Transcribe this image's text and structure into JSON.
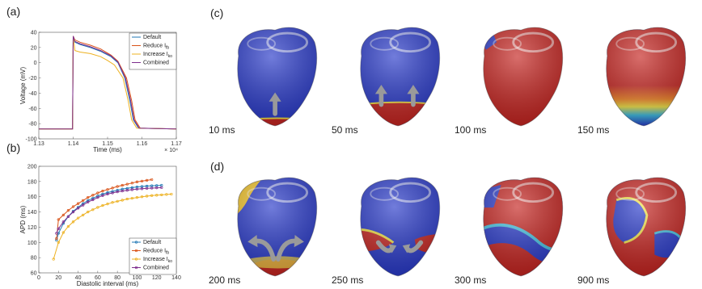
{
  "panels": {
    "a": "(a)",
    "b": "(b)",
    "c": "(c)",
    "d": "(d)"
  },
  "chart_data": [
    {
      "type": "line",
      "xlabel": "Time (ms)",
      "ylabel": "Voltage (mV)",
      "x_multiplier": "× 10⁴",
      "xlim": [
        1.13,
        1.17
      ],
      "ylim": [
        -100,
        40
      ],
      "xticks": [
        "1.13",
        "1.14",
        "1.15",
        "1.16",
        "1.17"
      ],
      "yticks": [
        "-100",
        "-80",
        "-60",
        "-40",
        "-20",
        "0",
        "20",
        "40"
      ],
      "legend_position": "top-right",
      "series": [
        {
          "name": "Default",
          "color": "#1f77b4",
          "x": [
            1.13,
            1.1398,
            1.14,
            1.1405,
            1.142,
            1.145,
            1.148,
            1.151,
            1.153,
            1.155,
            1.1565,
            1.1575,
            1.159,
            1.17
          ],
          "y": [
            -87,
            -87,
            35,
            27,
            24,
            20,
            15,
            8,
            0,
            -20,
            -50,
            -75,
            -86,
            -87
          ]
        },
        {
          "name": "Reduce I_{fb}",
          "color": "#d95319",
          "x": [
            1.13,
            1.1398,
            1.14,
            1.1405,
            1.142,
            1.145,
            1.148,
            1.151,
            1.153,
            1.1555,
            1.157,
            1.158,
            1.1595,
            1.17
          ],
          "y": [
            -87,
            -87,
            35,
            30,
            27,
            23,
            18,
            10,
            2,
            -20,
            -50,
            -75,
            -86,
            -87
          ]
        },
        {
          "name": "Increase I_{ko}",
          "color": "#edb120",
          "x": [
            1.13,
            1.1398,
            1.14,
            1.1405,
            1.142,
            1.145,
            1.148,
            1.15,
            1.152,
            1.1545,
            1.156,
            1.157,
            1.1585,
            1.17
          ],
          "y": [
            -87,
            -87,
            35,
            16,
            14,
            12,
            8,
            3,
            -3,
            -20,
            -50,
            -75,
            -86,
            -87
          ]
        },
        {
          "name": "Combined",
          "color": "#7e2f8e",
          "x": [
            1.13,
            1.1398,
            1.14,
            1.1405,
            1.142,
            1.145,
            1.148,
            1.151,
            1.153,
            1.1552,
            1.1567,
            1.1577,
            1.1592,
            1.17
          ],
          "y": [
            -87,
            -87,
            35,
            28,
            25,
            21,
            16,
            9,
            1,
            -20,
            -50,
            -75,
            -86,
            -87
          ]
        }
      ]
    },
    {
      "type": "line",
      "xlabel": "Diastolic interval (ms)",
      "ylabel": "APD (ms)",
      "xlim": [
        0,
        140
      ],
      "ylim": [
        60,
        200
      ],
      "xticks": [
        "0",
        "20",
        "40",
        "60",
        "80",
        "100",
        "120",
        "140"
      ],
      "yticks": [
        "60",
        "80",
        "100",
        "120",
        "140",
        "160",
        "180",
        "200"
      ],
      "legend_position": "bottom-right",
      "series": [
        {
          "name": "Default",
          "color": "#1f77b4",
          "x": [
            18,
            20,
            25,
            30,
            35,
            40,
            45,
            50,
            55,
            60,
            65,
            70,
            75,
            80,
            85,
            90,
            95,
            100,
            105,
            110,
            115,
            120,
            125
          ],
          "y": [
            103,
            112,
            125,
            134,
            141,
            146,
            151,
            155,
            158,
            161,
            163.5,
            165.5,
            167,
            168.5,
            170,
            171,
            172,
            172.8,
            173.5,
            174,
            174.4,
            174.7,
            175
          ]
        },
        {
          "name": "Reduce I_{fb}",
          "color": "#d95319",
          "x": [
            18,
            20,
            25,
            30,
            35,
            40,
            45,
            50,
            55,
            60,
            65,
            70,
            75,
            80,
            85,
            90,
            95,
            100,
            105,
            110,
            115
          ],
          "y": [
            105,
            130,
            136,
            142,
            147,
            151,
            155,
            159,
            162,
            165,
            167.5,
            169.5,
            171.5,
            173.5,
            175,
            176.5,
            178,
            179.5,
            180.5,
            181.5,
            182.5
          ]
        },
        {
          "name": "Increase I_{ko}",
          "color": "#edb120",
          "x": [
            15,
            20,
            25,
            30,
            35,
            40,
            45,
            50,
            55,
            60,
            65,
            70,
            75,
            80,
            85,
            90,
            95,
            100,
            105,
            110,
            115,
            120,
            125,
            130,
            135
          ],
          "y": [
            78,
            100,
            113,
            121,
            127,
            132,
            136,
            140,
            143,
            146,
            148.5,
            150.5,
            152.5,
            154,
            155.5,
            157,
            158,
            159,
            160,
            160.8,
            161.5,
            162,
            162.5,
            163,
            163.4
          ]
        },
        {
          "name": "Combined",
          "color": "#7e2f8e",
          "x": [
            18,
            20,
            25,
            30,
            35,
            40,
            45,
            50,
            55,
            60,
            65,
            70,
            75,
            80,
            85,
            90,
            95,
            100,
            105,
            110,
            115,
            120,
            125
          ],
          "y": [
            112,
            118,
            127,
            134,
            140,
            145,
            149,
            153,
            156,
            159,
            161.5,
            163.5,
            165,
            166.5,
            167.5,
            168.5,
            169.3,
            170,
            170.5,
            171,
            171.4,
            171.7,
            172
          ]
        }
      ]
    }
  ],
  "simulation_frames": {
    "c": [
      {
        "time": "10 ms",
        "front": 0.06,
        "arrows": "up-center"
      },
      {
        "time": "50 ms",
        "front": 0.2,
        "arrows": "up-two"
      },
      {
        "time": "100 ms",
        "front": 1.0,
        "arrows": "none"
      },
      {
        "time": "150 ms",
        "front": 0.72,
        "arrows": "none"
      }
    ],
    "d": [
      {
        "time": "200 ms",
        "arrows": "outward"
      },
      {
        "time": "250 ms",
        "arrows": "inward"
      },
      {
        "time": "300 ms",
        "arrows": "none"
      },
      {
        "time": "900 ms",
        "arrows": "none"
      }
    ]
  },
  "colors": {
    "rest": "#2536c8",
    "excited": "#c4201c",
    "transition_mid": "#f0e040",
    "arrow": "#9a9a9a"
  }
}
